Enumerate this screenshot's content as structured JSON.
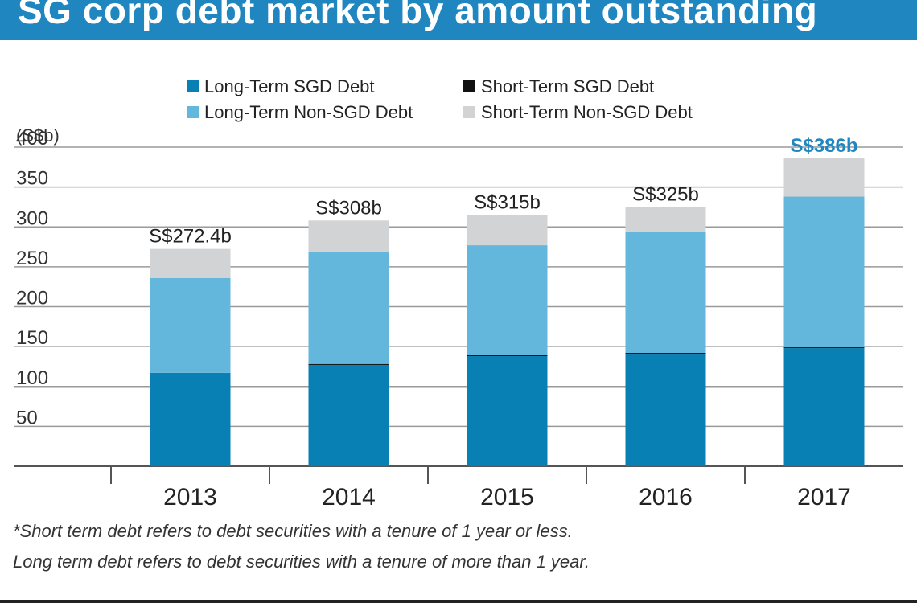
{
  "header": {
    "title": "SG corp debt market by amount outstanding"
  },
  "chart_data": {
    "type": "bar",
    "stacked": true,
    "categories": [
      "2013",
      "2014",
      "2015",
      "2016",
      "2017"
    ],
    "series": [
      {
        "name": "Long-Term SGD Debt",
        "color": "#0880b3",
        "values": [
          117,
          127,
          138,
          141,
          148
        ]
      },
      {
        "name": "Short-Term SGD Debt",
        "color": "#111111",
        "values": [
          0,
          1,
          1,
          1,
          1
        ]
      },
      {
        "name": "Long-Term Non-SGD Debt",
        "color": "#63b6dc",
        "values": [
          119,
          140,
          138,
          152,
          189
        ]
      },
      {
        "name": "Short-Term Non-SGD Debt",
        "color": "#d2d3d5",
        "values": [
          36.4,
          40,
          38,
          31,
          48
        ]
      }
    ],
    "totals": [
      "S$272.4b",
      "S$308b",
      "S$315b",
      "S$325b",
      "S$386b"
    ],
    "total_label_colors": [
      "#222222",
      "#222222",
      "#222222",
      "#222222",
      "#1f86c0"
    ],
    "ylabel": "(S$b)",
    "yticks": [
      50,
      100,
      150,
      200,
      250,
      300,
      350,
      400
    ],
    "ylim": [
      0,
      400
    ],
    "grid": true,
    "legend_position": "top"
  },
  "footnotes": {
    "line1": "*Short term debt refers to debt securities with a tenure of 1 year or less.",
    "line2": "Long term debt refers to debt securities with a tenure of more than 1 year."
  }
}
